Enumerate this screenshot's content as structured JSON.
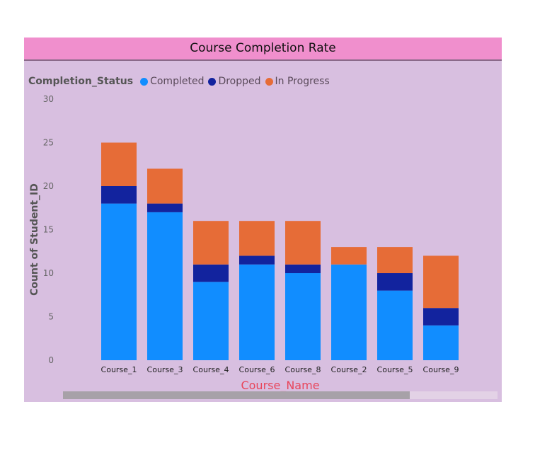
{
  "chart_data": {
    "type": "bar",
    "stacked": true,
    "title": "Course Completion Rate",
    "xlabel": "Course_Name",
    "ylabel": "Count of Student_ID",
    "ylim": [
      0,
      30
    ],
    "yticks": [
      0,
      5,
      10,
      15,
      20,
      25,
      30
    ],
    "legend_title": "Completion_Status",
    "legend_position": "top-left",
    "grid": false,
    "categories": [
      "Course_1",
      "Course_3",
      "Course_4",
      "Course_6",
      "Course_8",
      "Course_2",
      "Course_5",
      "Course_9"
    ],
    "series": [
      {
        "name": "Completed",
        "color": "#118dff",
        "values": [
          18,
          17,
          9,
          11,
          10,
          11,
          8,
          4
        ]
      },
      {
        "name": "Dropped",
        "color": "#12239e",
        "values": [
          2,
          1,
          2,
          1,
          1,
          0,
          2,
          2
        ]
      },
      {
        "name": "In Progress",
        "color": "#e66c37",
        "values": [
          5,
          4,
          5,
          4,
          5,
          2,
          3,
          6
        ]
      }
    ]
  },
  "colors": {
    "panel_background": "#d8bfe0",
    "title_bar": "#f08fcd",
    "xlabel_color": "#e8465b"
  }
}
